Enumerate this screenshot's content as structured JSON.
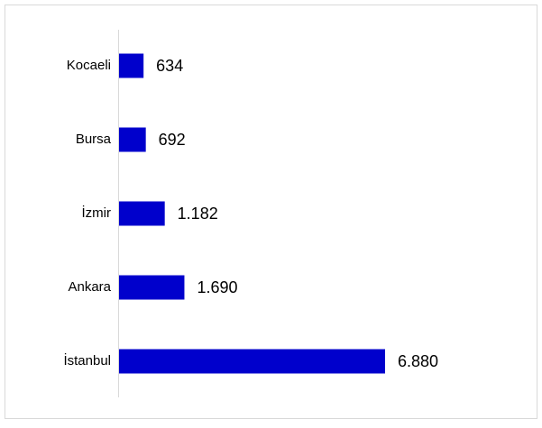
{
  "chart_data": {
    "type": "bar",
    "orientation": "horizontal",
    "categories": [
      "Kocaeli",
      "Bursa",
      "İzmir",
      "Ankara",
      "İstanbul"
    ],
    "values": [
      634,
      692,
      1182,
      1690,
      6880
    ],
    "value_labels": [
      "634",
      "692",
      "1.182",
      "1.690",
      "6.880"
    ],
    "color": "#0000cc"
  }
}
